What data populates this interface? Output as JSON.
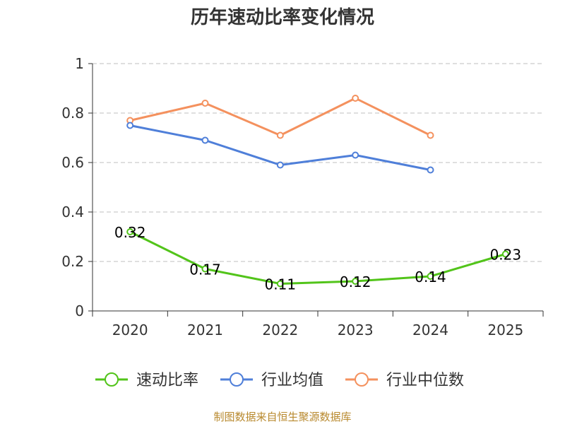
{
  "chart_data": {
    "type": "line",
    "title": "历年速动比率变化情况",
    "categories": [
      "2020",
      "2021",
      "2022",
      "2023",
      "2024",
      "2025"
    ],
    "ylim": [
      0,
      1
    ],
    "yticks": [
      0,
      0.2,
      0.4,
      0.6,
      0.8,
      1
    ],
    "ytick_labels": [
      "0",
      "0.2",
      "0.4",
      "0.6",
      "0.8",
      "1"
    ],
    "grid": true,
    "legend_position": "bottom",
    "series": [
      {
        "name": "速动比率",
        "color": "#52c41a",
        "values": [
          0.32,
          0.17,
          0.11,
          0.12,
          0.14,
          0.23
        ],
        "labels": [
          "0.32",
          "0.17",
          "0.11",
          "0.12",
          "0.14",
          "0.23"
        ],
        "show_labels": true
      },
      {
        "name": "行业均值",
        "color": "#4f7fd9",
        "values": [
          0.75,
          0.69,
          0.59,
          0.63,
          0.57,
          null
        ],
        "show_labels": false
      },
      {
        "name": "行业中位数",
        "color": "#f4915e",
        "values": [
          0.77,
          0.84,
          0.71,
          0.86,
          0.71,
          null
        ],
        "show_labels": false
      }
    ]
  },
  "footer": {
    "source": "制图数据来自恒生聚源数据库"
  }
}
